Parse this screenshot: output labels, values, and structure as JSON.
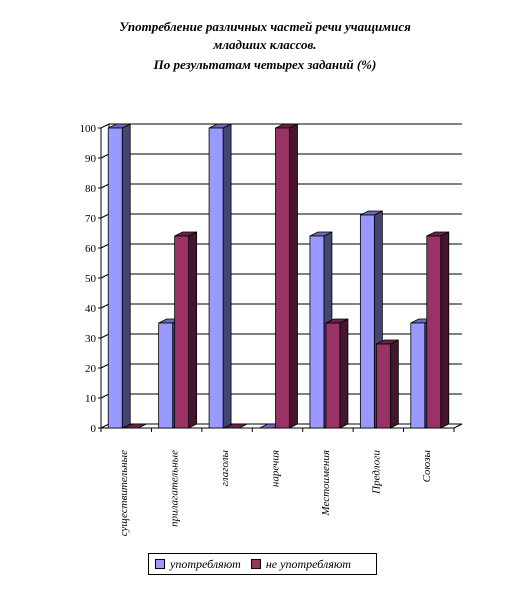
{
  "chart_data": {
    "type": "bar",
    "title_lines": [
      "Употребление различных частей речи учащимися",
      "младших классов.",
      "По результатам четырех заданий (%)"
    ],
    "categories": [
      "существительные",
      "прилагательные",
      "глаголы",
      "наречия",
      "Местоимения",
      "Предлоги",
      "Союзы"
    ],
    "series": [
      {
        "name": "употребляют",
        "values": [
          100,
          35,
          100,
          0,
          64,
          71,
          35
        ],
        "color": "#9999ff"
      },
      {
        "name": "не употребляют",
        "values": [
          0,
          64,
          0,
          100,
          35,
          28,
          64
        ],
        "color": "#993366"
      }
    ],
    "ylim": [
      0,
      100
    ],
    "yticks": [
      0,
      10,
      20,
      30,
      40,
      50,
      60,
      70,
      80,
      90,
      100
    ],
    "grid": true,
    "legend_position": "bottom",
    "three_d": true
  }
}
